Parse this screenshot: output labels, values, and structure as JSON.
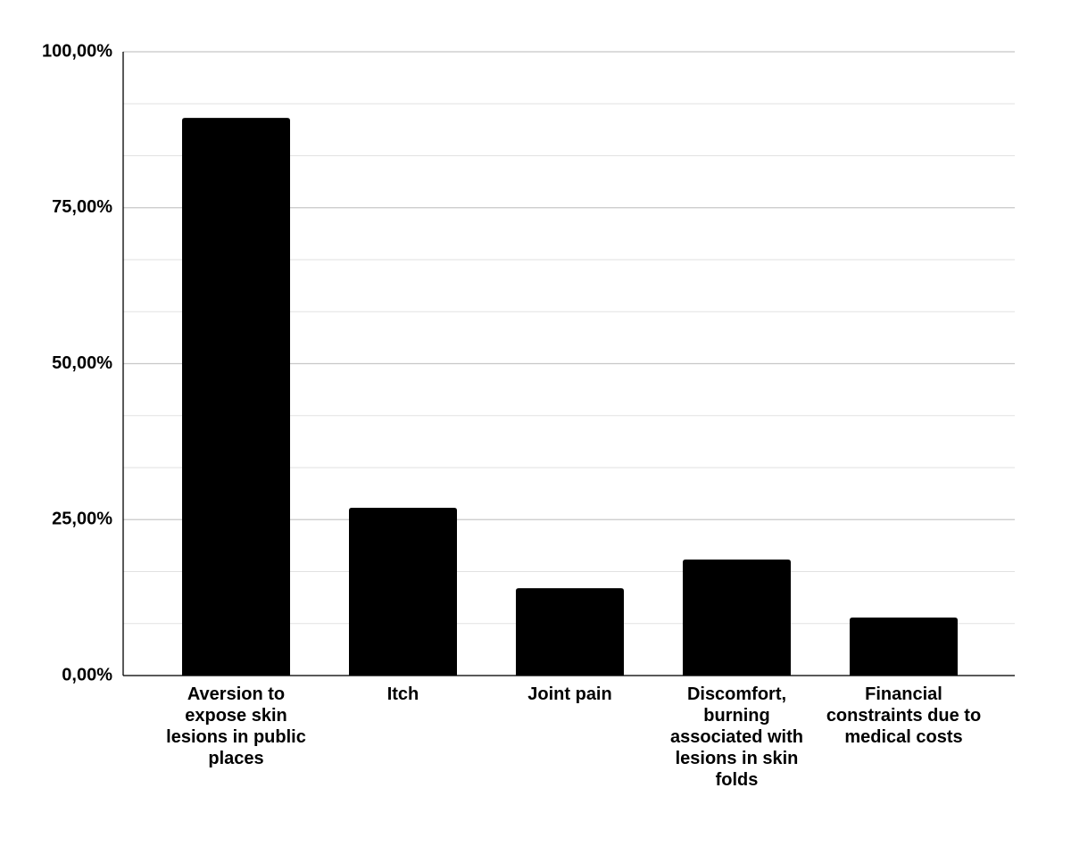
{
  "chart_data": {
    "type": "bar",
    "categories": [
      "Aversion to expose skin lesions in public places",
      "Itch",
      "Joint pain",
      "Discomfort, burning associated with lesions in skin folds",
      "Financial constraints due to medical costs"
    ],
    "values": [
      89.4,
      26.9,
      14.0,
      18.6,
      9.3
    ],
    "color": "#000000",
    "ylim": [
      0,
      100
    ],
    "yticks": [
      {
        "value": 0,
        "label": "0,00%"
      },
      {
        "value": 25,
        "label": "25,00%"
      },
      {
        "value": 50,
        "label": "50,00%"
      },
      {
        "value": 75,
        "label": "75,00%"
      },
      {
        "value": 100,
        "label": "100,00%"
      }
    ],
    "grid": true,
    "minor_grid_divisions": 3
  }
}
